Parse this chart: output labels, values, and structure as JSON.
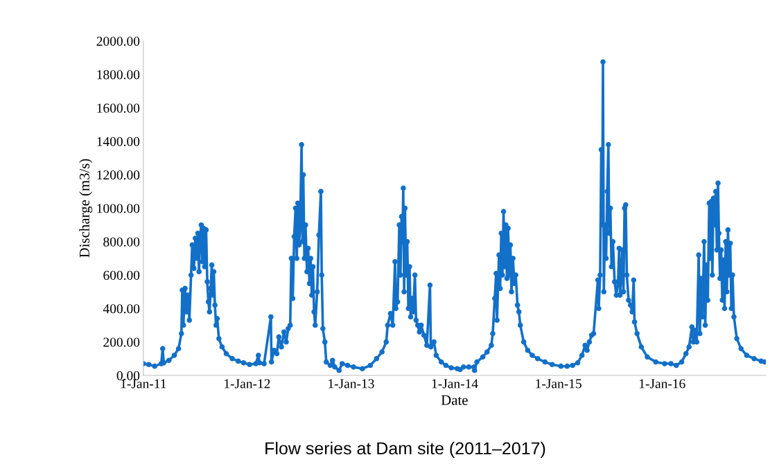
{
  "chart_data": {
    "type": "line",
    "title": "Flow series at Dam site (2011–2017)",
    "xlabel": "Date",
    "ylabel": "Discharge (m3/s)",
    "marker": "circle",
    "line_style": "solid",
    "grid": false,
    "xlim": [
      "2011-01-01",
      "2016-12-31"
    ],
    "xticks": [
      {
        "value": "2011-01-01",
        "label": "1-Jan-11"
      },
      {
        "value": "2012-01-01",
        "label": "1-Jan-12"
      },
      {
        "value": "2013-01-01",
        "label": "1-Jan-13"
      },
      {
        "value": "2014-01-01",
        "label": "1-Jan-14"
      },
      {
        "value": "2015-01-01",
        "label": "1-Jan-15"
      },
      {
        "value": "2016-01-01",
        "label": "1-Jan-16"
      }
    ],
    "ylim": [
      0,
      2000
    ],
    "yticks": [
      {
        "value": 0,
        "label": "0.00"
      },
      {
        "value": 200,
        "label": "200.00"
      },
      {
        "value": 400,
        "label": "400.00"
      },
      {
        "value": 600,
        "label": "600.00"
      },
      {
        "value": 800,
        "label": "800.00"
      },
      {
        "value": 1000,
        "label": "1000.00"
      },
      {
        "value": 1200,
        "label": "1200.00"
      },
      {
        "value": 1400,
        "label": "1400.00"
      },
      {
        "value": 1600,
        "label": "1600.00"
      },
      {
        "value": 1800,
        "label": "1800.00"
      },
      {
        "value": 2000,
        "label": "2000.00"
      }
    ],
    "series": [
      {
        "color": "#1370c8",
        "x": [
          "2011-01-01",
          "2011-01-20",
          "2011-02-10",
          "2011-03-05",
          "2011-03-10",
          "2011-03-14",
          "2011-04-01",
          "2011-04-20",
          "2011-05-05",
          "2011-05-15",
          "2011-05-18",
          "2011-05-22",
          "2011-05-28",
          "2011-06-02",
          "2011-06-08",
          "2011-06-12",
          "2011-06-18",
          "2011-06-22",
          "2011-06-28",
          "2011-07-03",
          "2011-07-08",
          "2011-07-12",
          "2011-07-16",
          "2011-07-20",
          "2011-07-24",
          "2011-07-28",
          "2011-08-01",
          "2011-08-05",
          "2011-08-10",
          "2011-08-14",
          "2011-08-18",
          "2011-08-22",
          "2011-08-26",
          "2011-08-30",
          "2011-09-03",
          "2011-09-06",
          "2011-09-10",
          "2011-09-14",
          "2011-09-18",
          "2011-09-24",
          "2011-10-05",
          "2011-10-20",
          "2011-11-10",
          "2011-12-01",
          "2011-12-20",
          "2012-01-10",
          "2012-02-01",
          "2012-02-10",
          "2012-02-14",
          "2012-03-01",
          "2012-03-25",
          "2012-03-27",
          "2012-04-05",
          "2012-04-15",
          "2012-04-22",
          "2012-05-01",
          "2012-05-10",
          "2012-05-18",
          "2012-05-25",
          "2012-06-01",
          "2012-06-05",
          "2012-06-10",
          "2012-06-15",
          "2012-06-20",
          "2012-06-24",
          "2012-06-28",
          "2012-07-02",
          "2012-07-06",
          "2012-07-11",
          "2012-07-14",
          "2012-07-17",
          "2012-07-21",
          "2012-07-25",
          "2012-07-30",
          "2012-08-03",
          "2012-08-08",
          "2012-08-12",
          "2012-08-16",
          "2012-08-20",
          "2012-08-24",
          "2012-08-28",
          "2012-09-04",
          "2012-09-10",
          "2012-09-17",
          "2012-09-20",
          "2012-09-24",
          "2012-10-01",
          "2012-10-06",
          "2012-10-20",
          "2012-10-28",
          "2012-11-05",
          "2012-11-20",
          "2012-12-01",
          "2012-12-20",
          "2013-01-10",
          "2013-02-10",
          "2013-03-10",
          "2013-04-01",
          "2013-04-20",
          "2013-05-05",
          "2013-05-10",
          "2013-05-20",
          "2013-05-28",
          "2013-06-05",
          "2013-06-08",
          "2013-06-14",
          "2013-06-20",
          "2013-06-24",
          "2013-06-28",
          "2013-07-01",
          "2013-07-04",
          "2013-07-07",
          "2013-07-10",
          "2013-07-14",
          "2013-07-18",
          "2013-07-22",
          "2013-07-26",
          "2013-07-30",
          "2013-08-04",
          "2013-08-08",
          "2013-08-14",
          "2013-08-18",
          "2013-08-24",
          "2013-08-30",
          "2013-09-05",
          "2013-09-15",
          "2013-09-25",
          "2013-10-06",
          "2013-10-09",
          "2013-10-20",
          "2013-10-28",
          "2013-11-15",
          "2013-12-01",
          "2013-12-20",
          "2014-01-10",
          "2014-01-20",
          "2014-02-01",
          "2014-02-20",
          "2014-03-10",
          "2014-03-12",
          "2014-03-20",
          "2014-04-10",
          "2014-04-25",
          "2014-05-10",
          "2014-05-15",
          "2014-05-22",
          "2014-05-27",
          "2014-05-30",
          "2014-06-03",
          "2014-06-06",
          "2014-06-10",
          "2014-06-14",
          "2014-06-18",
          "2014-06-22",
          "2014-06-26",
          "2014-06-30",
          "2014-07-04",
          "2014-07-08",
          "2014-07-12",
          "2014-07-16",
          "2014-07-20",
          "2014-07-25",
          "2014-07-30",
          "2014-08-04",
          "2014-08-10",
          "2014-08-15",
          "2014-08-20",
          "2014-09-01",
          "2014-09-15",
          "2014-10-01",
          "2014-10-20",
          "2014-11-15",
          "2014-12-10",
          "2015-01-10",
          "2015-02-01",
          "2015-02-20",
          "2015-03-10",
          "2015-03-25",
          "2015-04-05",
          "2015-04-12",
          "2015-04-20",
          "2015-04-28",
          "2015-05-05",
          "2015-05-20",
          "2015-05-23",
          "2015-05-28",
          "2015-06-01",
          "2015-06-04",
          "2015-06-07",
          "2015-06-10",
          "2015-06-14",
          "2015-06-18",
          "2015-06-22",
          "2015-06-26",
          "2015-06-29",
          "2015-07-03",
          "2015-07-07",
          "2015-07-12",
          "2015-07-18",
          "2015-07-24",
          "2015-07-30",
          "2015-08-03",
          "2015-08-06",
          "2015-08-10",
          "2015-08-14",
          "2015-08-18",
          "2015-08-22",
          "2015-08-26",
          "2015-08-30",
          "2015-09-05",
          "2015-09-12",
          "2015-09-18",
          "2015-09-23",
          "2015-09-26",
          "2015-10-05",
          "2015-10-20",
          "2015-11-10",
          "2015-12-10",
          "2016-01-10",
          "2016-02-01",
          "2016-02-20",
          "2016-03-10",
          "2016-03-25",
          "2016-04-05",
          "2016-04-15",
          "2016-04-20",
          "2016-04-28",
          "2016-05-02",
          "2016-05-09",
          "2016-05-13",
          "2016-05-18",
          "2016-05-22",
          "2016-05-28",
          "2016-06-01",
          "2016-06-05",
          "2016-06-10",
          "2016-06-15",
          "2016-06-18",
          "2016-06-22",
          "2016-06-26",
          "2016-06-30",
          "2016-07-04",
          "2016-07-08",
          "2016-07-12",
          "2016-07-16",
          "2016-07-19",
          "2016-07-23",
          "2016-07-27",
          "2016-07-31",
          "2016-08-04",
          "2016-08-08",
          "2016-08-12",
          "2016-08-16",
          "2016-08-20",
          "2016-08-24",
          "2016-08-28",
          "2016-09-01",
          "2016-09-05",
          "2016-09-10",
          "2016-09-20",
          "2016-10-05",
          "2016-10-25",
          "2016-11-20",
          "2016-12-15",
          "2016-12-28"
        ],
        "values": [
          70,
          65,
          55,
          70,
          160,
          75,
          90,
          120,
          160,
          250,
          510,
          300,
          520,
          380,
          480,
          330,
          600,
          780,
          640,
          820,
          700,
          850,
          620,
          830,
          900,
          680,
          880,
          650,
          870,
          560,
          440,
          380,
          520,
          660,
          480,
          620,
          420,
          300,
          340,
          220,
          170,
          130,
          100,
          85,
          75,
          65,
          70,
          120,
          75,
          70,
          350,
          80,
          150,
          130,
          230,
          170,
          260,
          200,
          280,
          300,
          700,
          460,
          830,
          1000,
          700,
          1030,
          780,
          900,
          1380,
          800,
          1200,
          700,
          900,
          620,
          760,
          550,
          700,
          480,
          650,
          380,
          300,
          500,
          840,
          1100,
          600,
          280,
          200,
          80,
          60,
          90,
          50,
          30,
          70,
          60,
          50,
          40,
          60,
          100,
          140,
          200,
          300,
          370,
          300,
          680,
          400,
          440,
          900,
          600,
          950,
          800,
          1120,
          500,
          1000,
          600,
          800,
          400,
          650,
          350,
          460,
          380,
          600,
          330,
          300,
          260,
          300,
          240,
          180,
          540,
          170,
          200,
          120,
          80,
          60,
          45,
          40,
          35,
          50,
          50,
          50,
          30,
          80,
          110,
          140,
          180,
          250,
          460,
          610,
          330,
          560,
          720,
          520,
          850,
          600,
          980,
          650,
          900,
          580,
          880,
          600,
          780,
          500,
          700,
          550,
          600,
          420,
          380,
          300,
          200,
          150,
          120,
          100,
          80,
          65,
          55,
          55,
          60,
          75,
          120,
          180,
          150,
          200,
          240,
          250,
          570,
          400,
          600,
          1350,
          900,
          1875,
          500,
          900,
          700,
          1100,
          1380,
          850,
          1000,
          650,
          800,
          560,
          480,
          560,
          760,
          480,
          600,
          750,
          500,
          1000,
          1020,
          600,
          450,
          420,
          380,
          570,
          320,
          250,
          170,
          110,
          80,
          70,
          70,
          60,
          80,
          130,
          170,
          290,
          200,
          270,
          200,
          720,
          250,
          580,
          350,
          800,
          300,
          660,
          450,
          1030,
          700,
          1040,
          600,
          1060,
          900,
          1100,
          750,
          1150,
          850,
          580,
          750,
          450,
          690,
          400,
          800,
          500,
          870,
          600,
          790,
          400,
          600,
          350,
          220,
          160,
          120,
          100,
          85,
          80
        ]
      }
    ]
  }
}
